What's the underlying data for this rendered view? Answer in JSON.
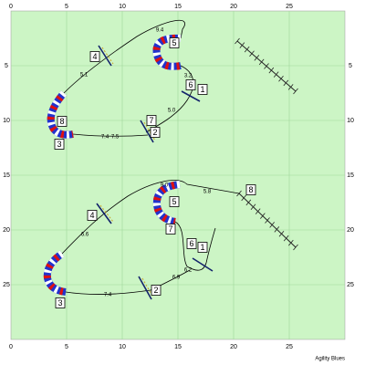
{
  "axes": {
    "x_ticks": [
      0,
      5,
      10,
      15,
      20,
      25
    ],
    "y_ticks": [
      5,
      10,
      15,
      20,
      25
    ]
  },
  "course_top": {
    "obstacle_numbers": [
      "4",
      "5",
      "6",
      "1",
      "7",
      "8",
      "2",
      "3"
    ],
    "distances": [
      "9.4",
      "5.1",
      "3.2",
      "5.0",
      "7.4",
      "7.5"
    ]
  },
  "course_bottom": {
    "obstacle_numbers": [
      "4",
      "5",
      "8",
      "7",
      "6",
      "1",
      "2",
      "3"
    ],
    "distances": [
      "9.0",
      "5.8",
      "6.6",
      "7.4",
      "6.9",
      "6.2"
    ]
  },
  "footer": "Agility Blues"
}
